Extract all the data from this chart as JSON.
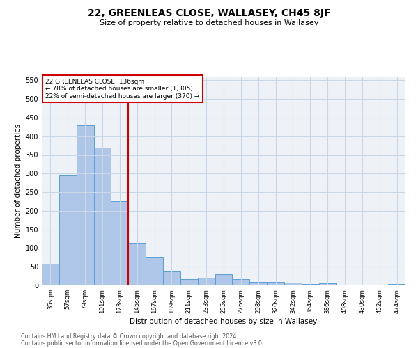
{
  "title": "22, GREENLEAS CLOSE, WALLASEY, CH45 8JF",
  "subtitle": "Size of property relative to detached houses in Wallasey",
  "xlabel": "Distribution of detached houses by size in Wallasey",
  "ylabel": "Number of detached properties",
  "footnote1": "Contains HM Land Registry data © Crown copyright and database right 2024.",
  "footnote2": "Contains public sector information licensed under the Open Government Licence v3.0.",
  "categories": [
    "35sqm",
    "57sqm",
    "79sqm",
    "101sqm",
    "123sqm",
    "145sqm",
    "167sqm",
    "189sqm",
    "211sqm",
    "233sqm",
    "255sqm",
    "276sqm",
    "298sqm",
    "320sqm",
    "342sqm",
    "364sqm",
    "386sqm",
    "408sqm",
    "430sqm",
    "452sqm",
    "474sqm"
  ],
  "values": [
    57,
    295,
    430,
    370,
    225,
    113,
    76,
    37,
    17,
    20,
    29,
    17,
    10,
    9,
    8,
    4,
    5,
    1,
    1,
    1,
    4
  ],
  "bar_color": "#aec6e8",
  "bar_edge_color": "#5a9fd4",
  "vline_x": 4.5,
  "vline_color": "#cc0000",
  "annotation_box_text": "22 GREENLEAS CLOSE: 136sqm\n← 78% of detached houses are smaller (1,305)\n22% of semi-detached houses are larger (370) →",
  "annotation_box_color": "#cc0000",
  "ylim": [
    0,
    560
  ],
  "yticks": [
    0,
    50,
    100,
    150,
    200,
    250,
    300,
    350,
    400,
    450,
    500,
    550
  ],
  "grid_color": "#c8d8e8",
  "background_color": "#eef2f7"
}
